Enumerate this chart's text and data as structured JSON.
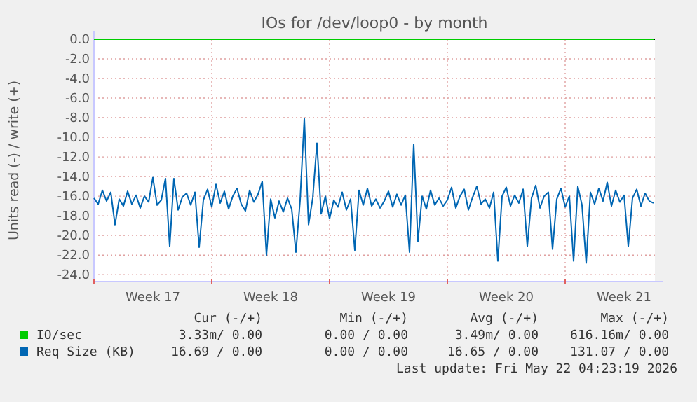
{
  "chart_data": {
    "type": "line",
    "title": "IOs for /dev/loop0 - by month",
    "ylabel": "Units read (-) / write (+)",
    "categories": [
      null,
      null,
      null,
      null,
      null,
      null,
      null,
      null,
      null,
      null,
      null,
      null,
      null,
      null,
      "Week 17",
      null,
      null,
      null,
      null,
      null,
      null,
      null,
      null,
      null,
      null,
      null,
      null,
      null,
      null,
      null,
      null,
      null,
      null,
      null,
      null,
      null,
      null,
      null,
      null,
      null,
      null,
      null,
      "Week 18",
      null,
      null,
      null,
      null,
      null,
      null,
      null,
      null,
      null,
      null,
      null,
      null,
      null,
      null,
      null,
      null,
      null,
      null,
      null,
      null,
      null,
      null,
      null,
      null,
      null,
      null,
      null,
      "Week 19",
      null,
      null,
      null,
      null,
      null,
      null,
      null,
      null,
      null,
      null,
      null,
      null,
      null,
      null,
      null,
      null,
      null,
      null,
      null,
      null,
      null,
      null,
      null,
      null,
      null,
      null,
      null,
      "Week 20",
      null,
      null,
      null,
      null,
      null,
      null,
      null,
      null,
      null,
      null,
      null,
      null,
      null,
      null,
      null,
      null,
      null,
      null,
      null,
      null,
      null,
      null,
      null,
      null,
      null,
      null,
      null,
      "Week 21",
      null,
      null,
      null,
      null,
      null,
      null,
      null
    ],
    "series": [
      {
        "name": "IO/sec",
        "color": "#00cc00",
        "values": [
          0,
          0,
          0,
          0,
          0,
          0,
          0,
          0,
          0,
          0,
          0,
          0,
          0,
          0,
          0,
          0,
          0,
          0,
          0,
          0,
          0,
          0,
          0,
          0,
          0,
          0,
          0,
          0,
          0,
          0,
          0,
          0,
          0,
          0,
          0,
          0,
          0,
          0,
          0,
          0,
          0,
          0,
          0,
          0,
          0,
          0,
          0,
          0,
          0,
          0,
          0,
          0,
          0,
          0,
          0,
          0,
          0,
          0,
          0,
          0,
          0,
          0,
          0,
          0,
          0,
          0,
          0,
          0,
          0,
          0,
          0,
          0,
          0,
          0,
          0,
          0,
          0,
          0,
          0,
          0,
          0,
          0,
          0,
          0,
          0,
          0,
          0,
          0,
          0,
          0,
          0,
          0,
          0,
          0,
          0,
          0,
          0,
          0,
          0,
          0,
          0,
          0,
          0,
          0,
          0,
          0,
          0,
          0,
          0,
          0,
          0,
          0,
          0,
          0,
          0,
          0,
          0,
          0,
          0,
          0,
          0,
          0,
          0,
          0,
          0,
          0,
          0,
          0,
          0,
          0,
          0,
          0,
          0,
          0
        ]
      },
      {
        "name": "Req Size (KB)",
        "color": "#0066b3",
        "values": [
          -16.2,
          -16.8,
          -15.4,
          -16.5,
          -15.6,
          -18.9,
          -16.3,
          -17.0,
          -15.5,
          -16.8,
          -15.9,
          -17.2,
          -16.0,
          -16.6,
          -14.1,
          -16.9,
          -16.4,
          -14.2,
          -21.1,
          -14.2,
          -17.4,
          -16.1,
          -15.7,
          -16.9,
          -15.6,
          -21.2,
          -16.4,
          -15.3,
          -17.1,
          -14.8,
          -16.7,
          -15.5,
          -17.3,
          -16.0,
          -15.2,
          -16.8,
          -17.5,
          -15.4,
          -16.6,
          -15.8,
          -14.5,
          -22.0,
          -16.3,
          -18.2,
          -16.5,
          -17.6,
          -16.2,
          -17.3,
          -21.7,
          -16.4,
          -8.1,
          -18.9,
          -16.2,
          -10.6,
          -17.8,
          -16.0,
          -18.3,
          -16.4,
          -17.1,
          -15.6,
          -17.4,
          -16.3,
          -21.5,
          -15.4,
          -16.9,
          -15.2,
          -17.0,
          -16.3,
          -17.2,
          -16.5,
          -15.5,
          -17.1,
          -15.8,
          -16.9,
          -15.9,
          -21.7,
          -10.7,
          -20.6,
          -16.0,
          -17.3,
          -15.4,
          -16.9,
          -16.2,
          -17.0,
          -16.4,
          -15.1,
          -17.2,
          -16.0,
          -15.3,
          -17.4,
          -16.1,
          -15.0,
          -16.8,
          -16.3,
          -17.2,
          -15.6,
          -22.6,
          -16.0,
          -15.1,
          -17.0,
          -15.9,
          -16.7,
          -15.3,
          -21.1,
          -16.2,
          -14.9,
          -17.2,
          -16.0,
          -15.6,
          -21.4,
          -16.3,
          -15.2,
          -17.1,
          -16.0,
          -22.6,
          -15.0,
          -16.9,
          -22.8,
          -15.6,
          -16.8,
          -15.2,
          -16.5,
          -14.6,
          -17.0,
          -15.4,
          -16.6,
          -15.9,
          -21.1,
          -16.2,
          -15.3,
          -17.0,
          -15.7,
          -16.5,
          -16.7
        ]
      }
    ],
    "ylim": [
      -24.7,
      0
    ],
    "yticks": [
      {
        "value": 0,
        "label": "0.0"
      },
      {
        "value": -2,
        "label": "-2.0"
      },
      {
        "value": -4,
        "label": "-4.0"
      },
      {
        "value": -6,
        "label": "-6.0"
      },
      {
        "value": -8,
        "label": "-8.0"
      },
      {
        "value": -10,
        "label": "-10.0"
      },
      {
        "value": -12,
        "label": "-12.0"
      },
      {
        "value": -14,
        "label": "-14.0"
      },
      {
        "value": -16,
        "label": "-16.0"
      },
      {
        "value": -18,
        "label": "-18.0"
      },
      {
        "value": -20,
        "label": "-20.0"
      },
      {
        "value": -22,
        "label": "-22.0"
      },
      {
        "value": -24,
        "label": "-24.0"
      }
    ],
    "grid": true,
    "legend": "bottom",
    "annotations": [
      "Cur (-/+)",
      "Min (-/+)",
      "Avg (-/+)",
      "Max (-/+)",
      "3.33m/ 0.00",
      "0.00 / 0.00",
      "3.49m/ 0.00",
      "616.16m/ 0.00",
      "16.69 / 0.00",
      "0.00 / 0.00",
      "16.65 / 0.00",
      "131.07 / 0.00",
      "Last update: Fri May 22 04:23:19 2026"
    ]
  }
}
